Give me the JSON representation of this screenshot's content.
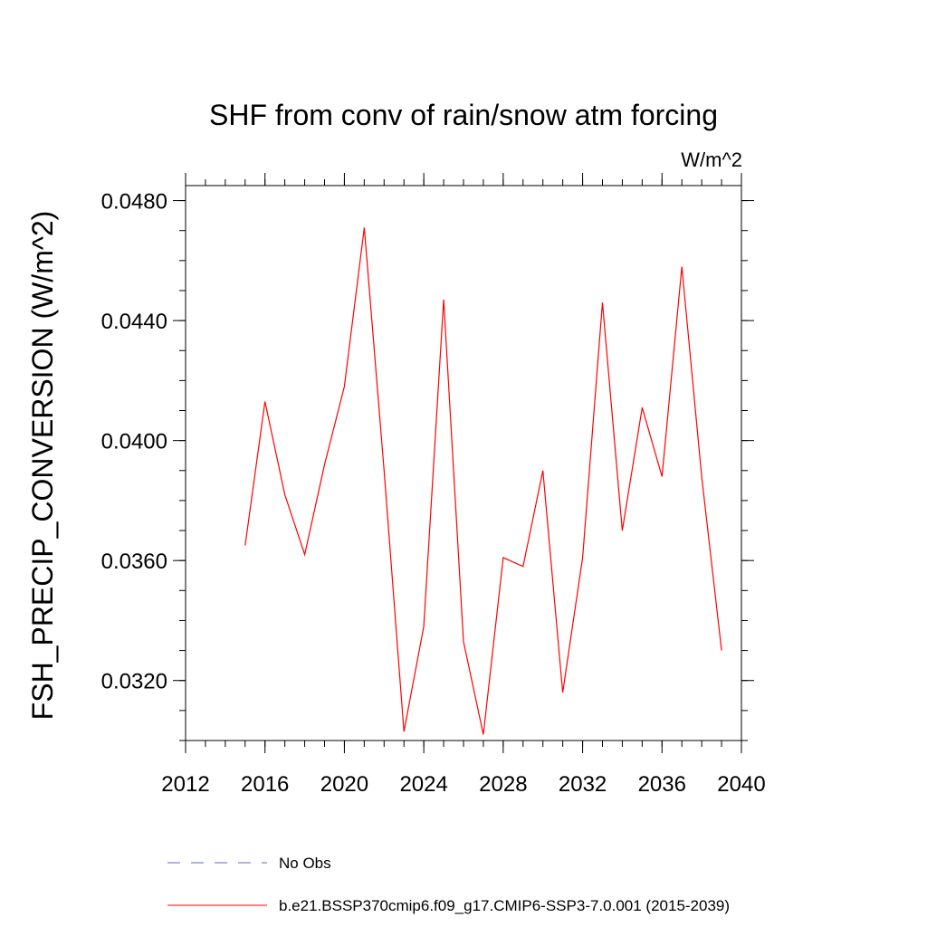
{
  "chart_data": {
    "type": "line",
    "title": "SHF from conv of rain/snow atm forcing",
    "units_label": "W/m^2",
    "xlabel": "",
    "ylabel": "FSH_PRECIP_CONVERSION  (W/m^2)",
    "xlim": [
      2012,
      2040
    ],
    "ylim": [
      0.03,
      0.0485
    ],
    "x_ticks": [
      2012,
      2016,
      2020,
      2024,
      2028,
      2032,
      2036,
      2040
    ],
    "x_tick_labels": [
      "2012",
      "2016",
      "2020",
      "2024",
      "2028",
      "2032",
      "2036",
      "2040"
    ],
    "x_minor_step": 1,
    "y_ticks": [
      0.032,
      0.036,
      0.04,
      0.044,
      0.048
    ],
    "y_tick_labels": [
      "0.0320",
      "0.0360",
      "0.0400",
      "0.0440",
      "0.0480"
    ],
    "y_minor_step": 0.001,
    "grid": false,
    "legend_position": "bottom",
    "series": [
      {
        "name": "b.e21.BSSP370cmip6.f09_g17.CMIP6-SSP3-7.0.001 (2015-2039)",
        "color": "#ff0000",
        "dash": "solid",
        "x": [
          2015,
          2016,
          2017,
          2018,
          2019,
          2020,
          2021,
          2022,
          2023,
          2024,
          2025,
          2026,
          2027,
          2028,
          2029,
          2030,
          2031,
          2032,
          2033,
          2034,
          2035,
          2036,
          2037,
          2038,
          2039
        ],
        "y": [
          0.0365,
          0.0413,
          0.0382,
          0.0362,
          0.0392,
          0.0418,
          0.0471,
          0.039,
          0.0303,
          0.0338,
          0.0447,
          0.0333,
          0.0302,
          0.0361,
          0.0358,
          0.039,
          0.0316,
          0.0361,
          0.0446,
          0.037,
          0.0411,
          0.0388,
          0.0458,
          0.0388,
          0.033
        ]
      }
    ],
    "legend": [
      {
        "label": "No Obs",
        "color": "#6666cc",
        "dash": "dashed"
      },
      {
        "label": "b.e21.BSSP370cmip6.f09_g17.CMIP6-SSP3-7.0.001 (2015-2039)",
        "color": "#ff0000",
        "dash": "solid"
      }
    ]
  }
}
